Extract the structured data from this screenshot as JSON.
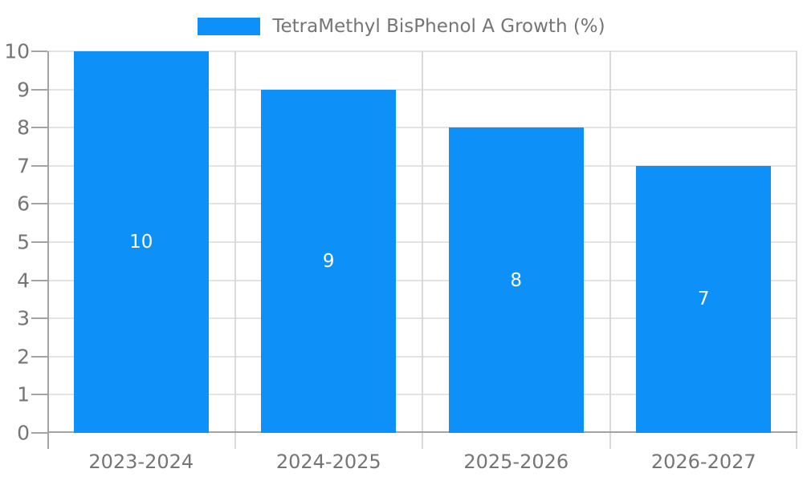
{
  "chart_data": {
    "type": "bar",
    "title": "TetraMethyl BisPhenol A Growth (%)",
    "legend_label": "TetraMethyl BisPhenol A Growth (%)",
    "legend_position": "top",
    "categories": [
      "2023-2024",
      "2024-2025",
      "2025-2026",
      "2026-2027"
    ],
    "values": [
      10,
      9,
      8,
      7
    ],
    "bar_value_labels": [
      "10",
      "9",
      "8",
      "7"
    ],
    "xlabel": "",
    "ylabel": "",
    "ylim": [
      0,
      10
    ],
    "ytick_step": 1,
    "yticks": [
      0,
      1,
      2,
      3,
      4,
      5,
      6,
      7,
      8,
      9,
      10
    ],
    "grid": true,
    "colors": {
      "bar": "#0e90f9",
      "gridline": "#e3e3e3",
      "separator": "#d9d9d9",
      "axis": "#a3a3a3",
      "tick_label": "#757575",
      "legend_text": "#757575",
      "bar_value_text": "#ffffff",
      "background": "#ffffff"
    }
  }
}
